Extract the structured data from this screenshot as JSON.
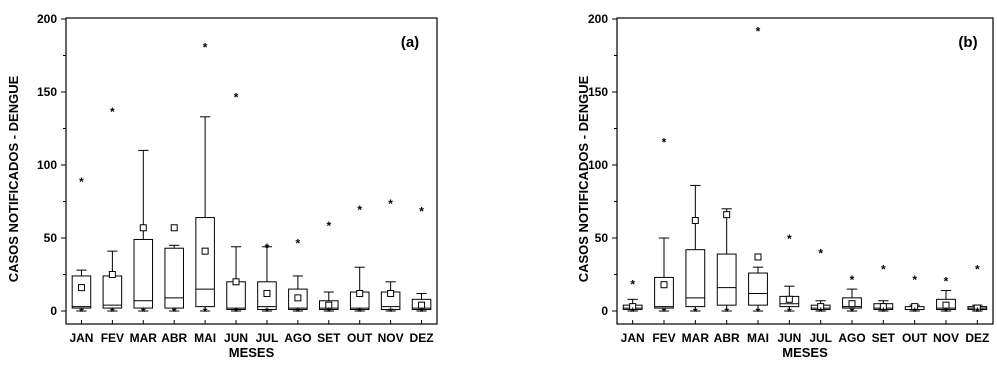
{
  "figure": {
    "colors": {
      "ink": "#000000",
      "background": "#ffffff"
    }
  },
  "chart_data": [
    {
      "type": "box",
      "panel_label": "(a)",
      "xlabel": "MESES",
      "ylabel": "CASOS NOTIFICADOS - DENGUE",
      "ylim": [
        0,
        200
      ],
      "yticks": [
        0,
        50,
        100,
        150,
        200
      ],
      "grid": false,
      "categories": [
        "JAN",
        "FEV",
        "MAR",
        "ABR",
        "MAI",
        "JUN",
        "JUL",
        "AGO",
        "SET",
        "OUT",
        "NOV",
        "DEZ"
      ],
      "boxes": [
        {
          "whisker_low": 0,
          "q1": 2,
          "median": 3,
          "q3": 24,
          "whisker_high": 28,
          "mean": 16,
          "max": 89,
          "min": 0
        },
        {
          "whisker_low": 0,
          "q1": 2,
          "median": 4,
          "q3": 24,
          "whisker_high": 41,
          "mean": 25,
          "max": 137,
          "min": 0
        },
        {
          "whisker_low": 0,
          "q1": 2,
          "median": 7,
          "q3": 49,
          "whisker_high": 110,
          "mean": 57,
          "max": null,
          "min": 0
        },
        {
          "whisker_low": 0,
          "q1": 2,
          "median": 9,
          "q3": 43,
          "whisker_high": 45,
          "mean": 57,
          "max": null,
          "min": 0
        },
        {
          "whisker_low": 0,
          "q1": 3,
          "median": 15,
          "q3": 64,
          "whisker_high": 133,
          "mean": 41,
          "max": 181,
          "min": 0
        },
        {
          "whisker_low": 0,
          "q1": 1,
          "median": 2,
          "q3": 20,
          "whisker_high": 44,
          "mean": 20,
          "max": 147,
          "min": 0
        },
        {
          "whisker_low": 0,
          "q1": 1,
          "median": 3,
          "q3": 20,
          "whisker_high": 44,
          "mean": 12,
          "max": 44,
          "min": 0
        },
        {
          "whisker_low": 0,
          "q1": 1,
          "median": 2,
          "q3": 15,
          "whisker_high": 24,
          "mean": 9,
          "max": 47,
          "min": 0
        },
        {
          "whisker_low": 0,
          "q1": 1,
          "median": 2,
          "q3": 7,
          "whisker_high": 13,
          "mean": 4,
          "max": 59,
          "min": 0
        },
        {
          "whisker_low": 0,
          "q1": 1,
          "median": 2,
          "q3": 13,
          "whisker_high": 30,
          "mean": 12,
          "max": 70,
          "min": 0
        },
        {
          "whisker_low": 0,
          "q1": 1,
          "median": 3,
          "q3": 13,
          "whisker_high": 20,
          "mean": 12,
          "max": 74,
          "min": 0
        },
        {
          "whisker_low": 0,
          "q1": 1,
          "median": 2,
          "q3": 8,
          "whisker_high": 12,
          "mean": 4,
          "max": 69,
          "min": 0
        }
      ]
    },
    {
      "type": "box",
      "panel_label": "(b)",
      "xlabel": "MESES",
      "ylabel": "CASOS NOTIFICADOS - DENGUE",
      "ylim": [
        0,
        200
      ],
      "yticks": [
        0,
        50,
        100,
        150,
        200
      ],
      "grid": false,
      "categories": [
        "JAN",
        "FEV",
        "MAR",
        "ABR",
        "MAI",
        "JUN",
        "JUL",
        "AGO",
        "SET",
        "OUT",
        "NOV",
        "DEZ"
      ],
      "boxes": [
        {
          "whisker_low": 0,
          "q1": 1,
          "median": 2,
          "q3": 4,
          "whisker_high": 8,
          "mean": 3,
          "max": 19,
          "min": 0
        },
        {
          "whisker_low": 0,
          "q1": 2,
          "median": 3,
          "q3": 23,
          "whisker_high": 50,
          "mean": 18,
          "max": 116,
          "min": 0
        },
        {
          "whisker_low": 0,
          "q1": 3,
          "median": 9,
          "q3": 42,
          "whisker_high": 86,
          "mean": 62,
          "max": null,
          "min": 0
        },
        {
          "whisker_low": 0,
          "q1": 4,
          "median": 16,
          "q3": 39,
          "whisker_high": 70,
          "mean": 66,
          "max": null,
          "min": 0
        },
        {
          "whisker_low": 0,
          "q1": 4,
          "median": 12,
          "q3": 26,
          "whisker_high": 30,
          "mean": 37,
          "max": 192,
          "min": 0
        },
        {
          "whisker_low": 0,
          "q1": 3,
          "median": 5,
          "q3": 10,
          "whisker_high": 17,
          "mean": 8,
          "max": 50,
          "min": 0
        },
        {
          "whisker_low": 0,
          "q1": 1,
          "median": 2,
          "q3": 4,
          "whisker_high": 7,
          "mean": 3,
          "max": 40,
          "min": 0
        },
        {
          "whisker_low": 0,
          "q1": 2,
          "median": 3,
          "q3": 9,
          "whisker_high": 15,
          "mean": 5,
          "max": 22,
          "min": 0
        },
        {
          "whisker_low": 0,
          "q1": 1,
          "median": 2,
          "q3": 5,
          "whisker_high": 7,
          "mean": 3,
          "max": 29,
          "min": 0
        },
        {
          "whisker_low": 0,
          "q1": 1,
          "median": 1,
          "q3": 3,
          "whisker_high": 4,
          "mean": 3,
          "max": 22,
          "min": 0
        },
        {
          "whisker_low": 0,
          "q1": 1,
          "median": 2,
          "q3": 8,
          "whisker_high": 14,
          "mean": 4,
          "max": 21,
          "min": 0
        },
        {
          "whisker_low": 0,
          "q1": 1,
          "median": 2,
          "q3": 3,
          "whisker_high": 4,
          "mean": 2,
          "max": 29,
          "min": 0
        }
      ]
    }
  ]
}
